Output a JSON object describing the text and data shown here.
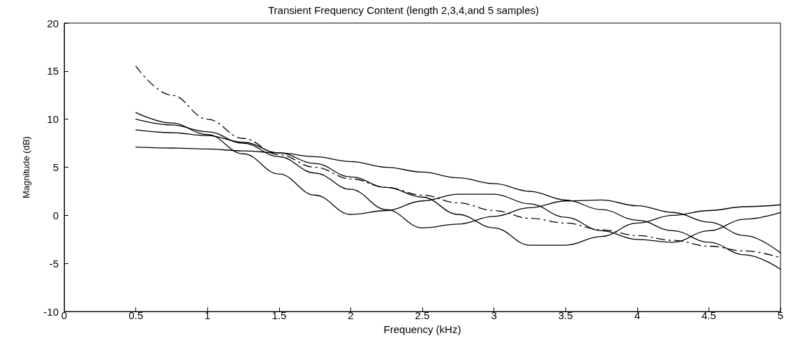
{
  "chart_data": {
    "type": "line",
    "title": "Transient Frequency Content (length 2,3,4,and 5 samples)",
    "xlabel": "Frequency (kHz)",
    "ylabel": "Magnitude (dB)",
    "x": [
      0.5,
      0.75,
      1,
      1.25,
      1.5,
      1.75,
      2,
      2.25,
      2.5,
      2.75,
      3,
      3.25,
      3.5,
      3.75,
      4,
      4.25,
      4.5,
      4.75,
      5
    ],
    "xlim": [
      0,
      5
    ],
    "xticks": [
      0,
      0.5,
      1,
      1.5,
      2,
      2.5,
      3,
      3.5,
      4,
      4.5,
      5
    ],
    "ylim": [
      -10,
      20
    ],
    "yticks": [
      -10,
      -5,
      0,
      5,
      10,
      15,
      20
    ],
    "grid": false,
    "marker": "none",
    "series": [
      {
        "color": "#000000",
        "line_style": "solid",
        "values": [
          7.1,
          7.0,
          6.9,
          6.7,
          6.5,
          6.1,
          5.6,
          5.0,
          4.5,
          3.9,
          3.3,
          2.5,
          1.6,
          0.6,
          -0.5,
          -1.6,
          -2.8,
          -4.1,
          -5.6
        ]
      },
      {
        "color": "#000000",
        "line_style": "solid",
        "values": [
          10.7,
          9.6,
          8.4,
          6.4,
          4.3,
          2.1,
          0.1,
          0.5,
          1.5,
          2.2,
          2.2,
          1.2,
          -0.2,
          -1.6,
          -2.5,
          -2.8,
          -1.6,
          -0.4,
          0.3
        ]
      },
      {
        "color": "#000000",
        "line_style": "solid",
        "values": [
          10.0,
          9.4,
          8.7,
          7.5,
          6.1,
          4.4,
          2.7,
          0.6,
          -1.3,
          -0.9,
          -0.1,
          0.8,
          1.5,
          1.6,
          1.0,
          0.3,
          -0.7,
          -2.1,
          -3.9
        ]
      },
      {
        "color": "#000000",
        "line_style": "solid",
        "values": [
          8.9,
          8.6,
          8.3,
          7.6,
          6.5,
          5.4,
          4.0,
          2.9,
          1.9,
          0.1,
          -1.3,
          -3.1,
          -3.1,
          -2.2,
          -0.8,
          0.0,
          0.5,
          0.9,
          1.1
        ]
      },
      {
        "color": "#000000",
        "line_style": "dashed",
        "values": [
          15.5,
          12.5,
          10.0,
          8.0,
          6.3,
          5.0,
          3.8,
          2.9,
          2.1,
          1.3,
          0.5,
          -0.3,
          -0.8,
          -1.5,
          -2.1,
          -2.6,
          -3.2,
          -3.7,
          -4.4
        ]
      }
    ]
  }
}
